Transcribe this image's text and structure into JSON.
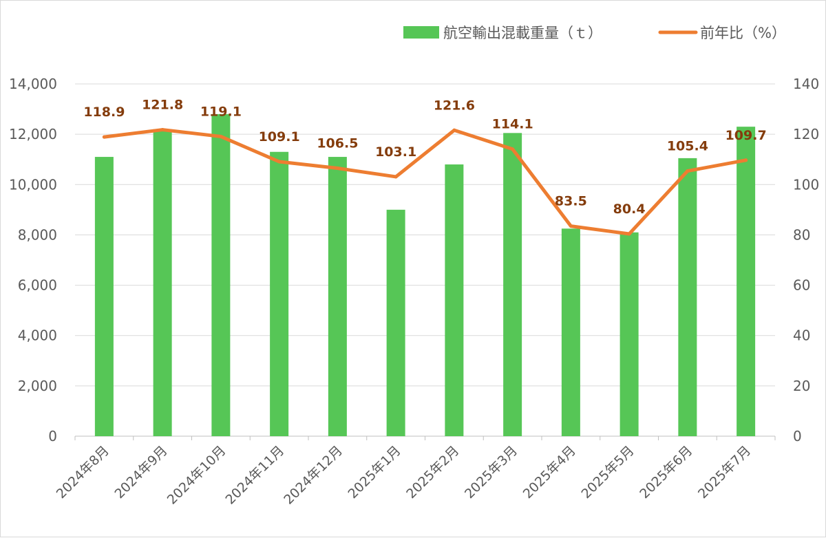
{
  "chart_data": {
    "type": "bar",
    "categories": [
      "2024年8月",
      "2024年9月",
      "2024年10月",
      "2024年11月",
      "2024年12月",
      "2025年1月",
      "2025年2月",
      "2025年3月",
      "2025年4月",
      "2025年5月",
      "2025年6月",
      "2025年7月"
    ],
    "series": [
      {
        "name": "航空輸出混載重量（ｔ）",
        "type": "bar",
        "axis": "left",
        "color": "#56c656",
        "values": [
          11100,
          12200,
          12800,
          11300,
          11100,
          9000,
          10800,
          12050,
          8250,
          8100,
          11050,
          12300
        ]
      },
      {
        "name": "前年比（%）",
        "type": "line",
        "axis": "right",
        "color": "#ed7d31",
        "values": [
          118.9,
          121.8,
          119.1,
          109.1,
          106.5,
          103.1,
          121.6,
          114.1,
          83.5,
          80.4,
          105.4,
          109.7
        ],
        "labels": [
          "118.9",
          "121.8",
          "119.1",
          "109.1",
          "106.5",
          "103.1",
          "121.6",
          "114.1",
          "83.5",
          "80.4",
          "105.4",
          "109.7"
        ]
      }
    ],
    "y_left": {
      "ylim": [
        0,
        14000
      ],
      "ticks": [
        0,
        2000,
        4000,
        6000,
        8000,
        10000,
        12000,
        14000
      ],
      "tick_labels": [
        "0",
        "2,000",
        "4,000",
        "6,000",
        "8,000",
        "10,000",
        "12,000",
        "14,000"
      ]
    },
    "y_right": {
      "ylim": [
        0,
        140
      ],
      "ticks": [
        0,
        20,
        40,
        60,
        80,
        100,
        120,
        140
      ],
      "tick_labels": [
        "0",
        "20",
        "40",
        "60",
        "80",
        "100",
        "120",
        "140"
      ]
    },
    "grid": true,
    "legend_position": "top-right",
    "title": "",
    "xlabel": "",
    "ylabel": ""
  }
}
